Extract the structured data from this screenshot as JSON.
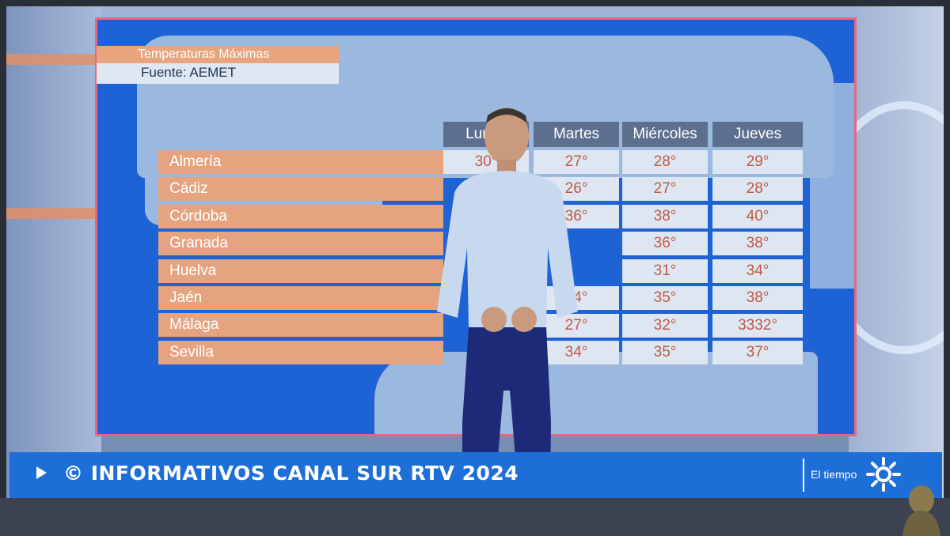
{
  "header": {
    "title": "Temperaturas Máximas",
    "source": "Fuente: AEMET"
  },
  "days": [
    "Lunes",
    "Martes",
    "Miércoles",
    "Jueves"
  ],
  "cities": [
    {
      "name": "Almería",
      "temps": [
        "30°",
        "27°",
        "28°",
        "29°"
      ]
    },
    {
      "name": "Cádiz",
      "temps": [
        "",
        "26°",
        "27°",
        "28°"
      ]
    },
    {
      "name": "Córdoba",
      "temps": [
        "",
        "36°",
        "38°",
        "40°"
      ]
    },
    {
      "name": "Granada",
      "temps": [
        "",
        "",
        "36°",
        "38°"
      ]
    },
    {
      "name": "Huelva",
      "temps": [
        "",
        "",
        "31°",
        "34°"
      ]
    },
    {
      "name": "Jaén",
      "temps": [
        "",
        "34°",
        "35°",
        "38°"
      ]
    },
    {
      "name": "Málaga",
      "temps": [
        "",
        "27°",
        "32°",
        "3332°"
      ]
    },
    {
      "name": "Sevilla",
      "temps": [
        "",
        "34°",
        "35°",
        "37°"
      ]
    }
  ],
  "ticker": {
    "text": "© INFORMATIVOS CANAL SUR RTV 2024",
    "brand": "El tiempo"
  },
  "colors": {
    "map_bg": "#1e63d6",
    "city_bar": "#e5a47f",
    "header_bar": "#5c6f8f",
    "cell_bg": "#dde6f1",
    "temp_text": "#c05a45",
    "ticker_bg": "#1e6ed8",
    "panel_border": "#e8667f"
  },
  "icons": {
    "play": "play-icon",
    "brand_logo": "canal-sur-sun-logo"
  }
}
